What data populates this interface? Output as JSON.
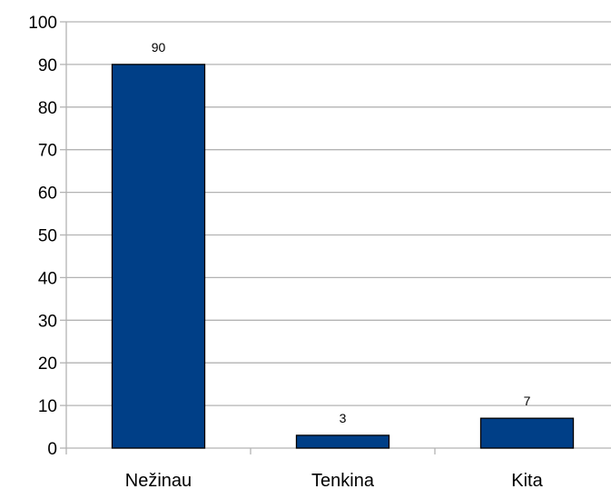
{
  "chart_data": {
    "type": "bar",
    "categories": [
      "Nežinau",
      "Tenkina",
      "Kita"
    ],
    "values": [
      90,
      3,
      7
    ],
    "data_labels": [
      "90",
      "3",
      "7"
    ],
    "yticks": [
      "0",
      "10",
      "20",
      "30",
      "40",
      "50",
      "60",
      "70",
      "80",
      "90",
      "100"
    ],
    "ylim": [
      0,
      100
    ],
    "grid": true,
    "legend": false,
    "colors": {
      "bar_fill": "#003f87",
      "bar_stroke": "#000000",
      "grid": "#b3b3b3",
      "axis": "#b3b3b3"
    }
  }
}
